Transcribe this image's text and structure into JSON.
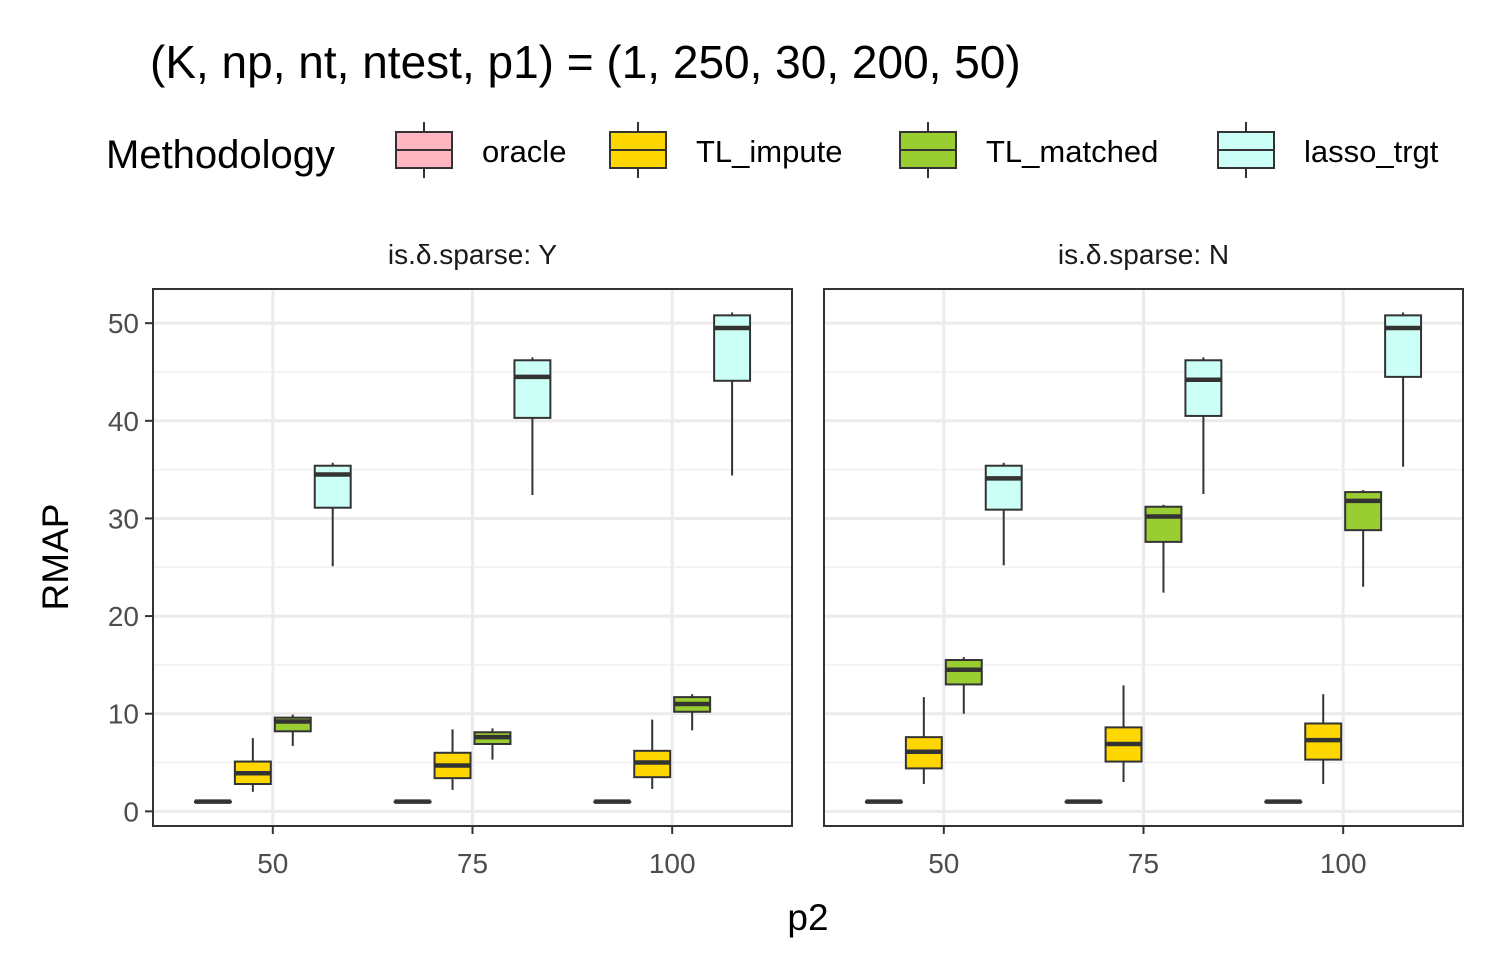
{
  "chart_data": {
    "type": "boxplot",
    "title": "(K, np, nt, ntest, p1) = (1, 250, 30, 200, 50)",
    "xlabel": "p2",
    "ylabel": "RMAP",
    "ylim": [
      -1.5,
      53.5
    ],
    "yticks": [
      0,
      10,
      20,
      30,
      40,
      50
    ],
    "categories": [
      "50",
      "75",
      "100"
    ],
    "legend": {
      "title": "Methodology",
      "position": "top",
      "entries": [
        {
          "name": "oracle",
          "color": "#FFB6C1"
        },
        {
          "name": "TL_impute",
          "color": "#FFD700"
        },
        {
          "name": "TL_matched",
          "color": "#9ACD32"
        },
        {
          "name": "lasso_trgt",
          "color": "#CCFFF5"
        }
      ]
    },
    "grid": true,
    "panels": [
      {
        "strip": "is.δ.sparse: Y",
        "series": [
          {
            "name": "oracle",
            "boxes": [
              {
                "min": 1,
                "q1": 1,
                "median": 1,
                "q3": 1,
                "max": 1
              },
              {
                "min": 1,
                "q1": 1,
                "median": 1,
                "q3": 1,
                "max": 1
              },
              {
                "min": 1,
                "q1": 1,
                "median": 1,
                "q3": 1,
                "max": 1
              }
            ]
          },
          {
            "name": "TL_impute",
            "boxes": [
              {
                "min": 2.0,
                "q1": 2.8,
                "median": 3.9,
                "q3": 5.1,
                "max": 7.5
              },
              {
                "min": 2.2,
                "q1": 3.4,
                "median": 4.7,
                "q3": 6.0,
                "max": 8.4
              },
              {
                "min": 2.3,
                "q1": 3.5,
                "median": 5.0,
                "q3": 6.2,
                "max": 9.4
              }
            ]
          },
          {
            "name": "TL_matched",
            "boxes": [
              {
                "min": 6.7,
                "q1": 8.2,
                "median": 9.2,
                "q3": 9.6,
                "max": 9.9
              },
              {
                "min": 5.3,
                "q1": 6.9,
                "median": 7.6,
                "q3": 8.1,
                "max": 8.5
              },
              {
                "min": 8.3,
                "q1": 10.2,
                "median": 11.0,
                "q3": 11.7,
                "max": 12.0
              }
            ]
          },
          {
            "name": "lasso_trgt",
            "boxes": [
              {
                "min": 25.1,
                "q1": 31.1,
                "median": 34.5,
                "q3": 35.4,
                "max": 35.7
              },
              {
                "min": 32.4,
                "q1": 40.3,
                "median": 44.5,
                "q3": 46.2,
                "max": 46.5
              },
              {
                "min": 34.4,
                "q1": 44.1,
                "median": 49.5,
                "q3": 50.8,
                "max": 51.1
              }
            ]
          }
        ]
      },
      {
        "strip": "is.δ.sparse: N",
        "series": [
          {
            "name": "oracle",
            "boxes": [
              {
                "min": 1,
                "q1": 1,
                "median": 1,
                "q3": 1,
                "max": 1
              },
              {
                "min": 1,
                "q1": 1,
                "median": 1,
                "q3": 1,
                "max": 1
              },
              {
                "min": 1,
                "q1": 1,
                "median": 1,
                "q3": 1,
                "max": 1
              }
            ]
          },
          {
            "name": "TL_impute",
            "boxes": [
              {
                "min": 2.8,
                "q1": 4.4,
                "median": 6.1,
                "q3": 7.6,
                "max": 11.7
              },
              {
                "min": 3.0,
                "q1": 5.1,
                "median": 6.9,
                "q3": 8.6,
                "max": 12.9
              },
              {
                "min": 2.8,
                "q1": 5.3,
                "median": 7.3,
                "q3": 9.0,
                "max": 12.0
              }
            ]
          },
          {
            "name": "TL_matched",
            "boxes": [
              {
                "min": 10.0,
                "q1": 13.0,
                "median": 14.5,
                "q3": 15.5,
                "max": 15.8
              },
              {
                "min": 22.4,
                "q1": 27.6,
                "median": 30.2,
                "q3": 31.2,
                "max": 31.4
              },
              {
                "min": 23.0,
                "q1": 28.8,
                "median": 31.8,
                "q3": 32.7,
                "max": 32.9
              }
            ]
          },
          {
            "name": "lasso_trgt",
            "boxes": [
              {
                "min": 25.2,
                "q1": 30.9,
                "median": 34.1,
                "q3": 35.4,
                "max": 35.7
              },
              {
                "min": 32.5,
                "q1": 40.5,
                "median": 44.2,
                "q3": 46.2,
                "max": 46.5
              },
              {
                "min": 35.3,
                "q1": 44.5,
                "median": 49.5,
                "q3": 50.8,
                "max": 51.1
              }
            ]
          }
        ]
      }
    ]
  }
}
